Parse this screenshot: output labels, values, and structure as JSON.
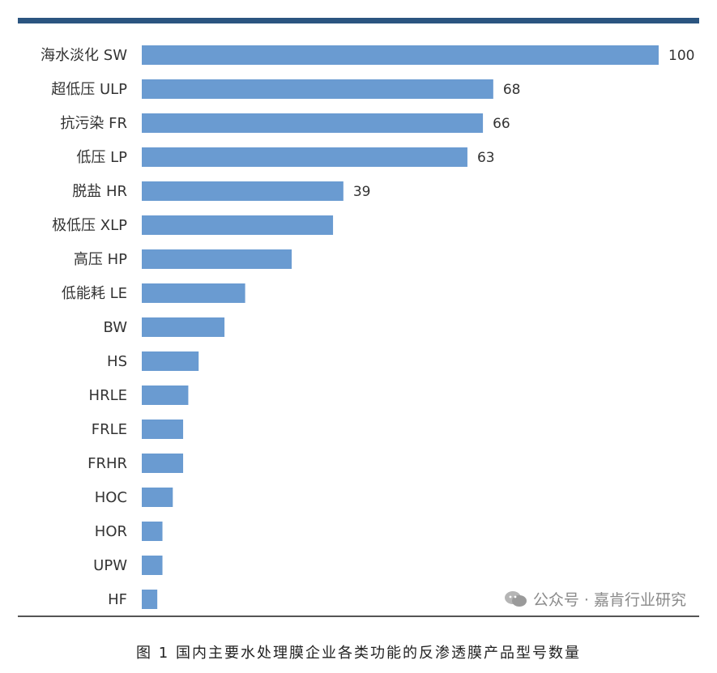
{
  "colors": {
    "bar": "#6a9bd1",
    "top_rule": "#2b5580",
    "bottom_rule": "#555555"
  },
  "watermark": {
    "icon": "wechat-icon",
    "text": "公众号 · 嘉肯行业研究"
  },
  "caption": "图 1 国内主要水处理膜企业各类功能的反渗透膜产品型号数量",
  "chart_data": {
    "type": "bar",
    "orientation": "horizontal",
    "categories": [
      "海水淡化 SW",
      "超低压 ULP",
      "抗污染 FR",
      "低压 LP",
      "脱盐 HR",
      "极低压 XLP",
      "高压 HP",
      "低能耗 LE",
      "BW",
      "HS",
      "HRLE",
      "FRLE",
      "FRHR",
      "HOC",
      "HOR",
      "UPW",
      "HF"
    ],
    "values": [
      100,
      68,
      66,
      63,
      39,
      37,
      29,
      20,
      16,
      11,
      9,
      8,
      8,
      6,
      4,
      4,
      3
    ],
    "data_labels": [
      "100",
      "68",
      "66",
      "63",
      "39",
      "",
      "",
      "",
      "",
      "",
      "",
      "",
      "",
      "",
      "",
      "",
      ""
    ],
    "xlim": [
      0,
      100
    ],
    "grid": false,
    "legend": "none"
  }
}
